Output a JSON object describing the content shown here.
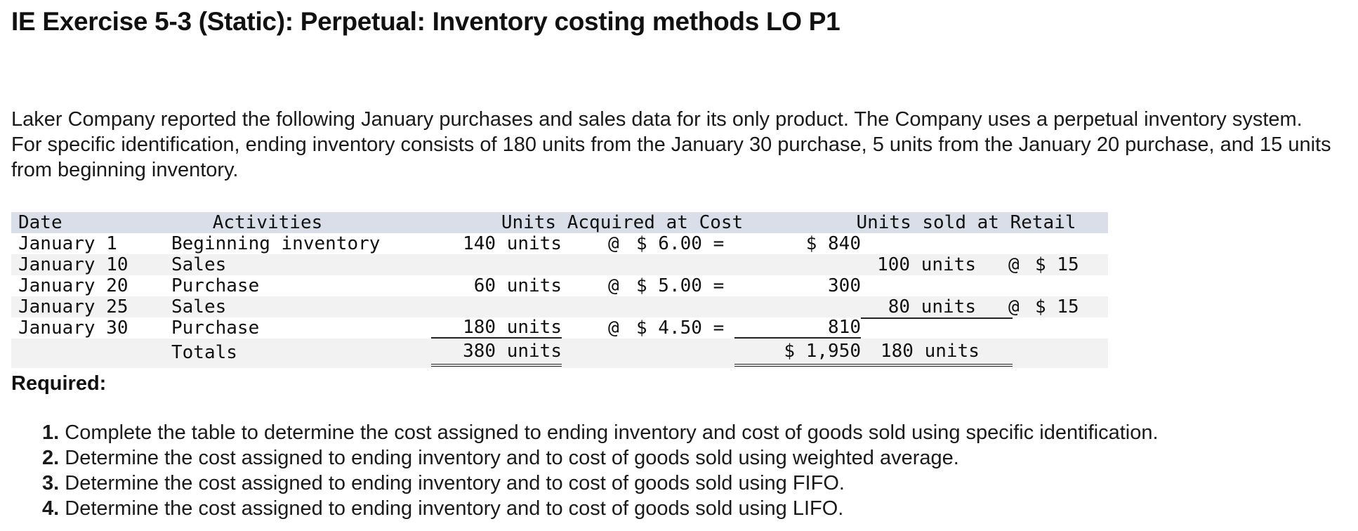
{
  "title": "IE Exercise 5-3 (Static): Perpetual: Inventory costing methods LO P1",
  "intro": "Laker Company reported the following January purchases and sales data for its only product. The Company uses a perpetual inventory system. For specific identification, ending inventory consists of 180 units from the January 30 purchase, 5 units from the January 20 purchase, and 15 units from beginning inventory.",
  "table": {
    "headers": {
      "date": "Date",
      "activities": "Activities",
      "acquired": "Units Acquired at Cost",
      "sold": "Units sold at Retail"
    },
    "rows": [
      {
        "date": "January 1",
        "activity": "Beginning inventory",
        "units_acq": "140 units",
        "at": "@",
        "cost": "$ 6.00 =",
        "total": "$ 840",
        "units_sold": "",
        "at2": "",
        "retail": ""
      },
      {
        "date": "January 10",
        "activity": "Sales",
        "units_acq": "",
        "at": "",
        "cost": "",
        "total": "",
        "units_sold": "100 units",
        "at2": "@",
        "retail": "$ 15"
      },
      {
        "date": "January 20",
        "activity": "Purchase",
        "units_acq": "60 units",
        "at": "@",
        "cost": "$ 5.00 =",
        "total": "300",
        "units_sold": "",
        "at2": "",
        "retail": ""
      },
      {
        "date": "January 25",
        "activity": "Sales",
        "units_acq": "",
        "at": "",
        "cost": "",
        "total": "",
        "units_sold": "80 units",
        "at2": "@",
        "retail": "$ 15"
      },
      {
        "date": "January 30",
        "activity": "Purchase",
        "units_acq": "180 units",
        "at": "@",
        "cost": "$ 4.50 =",
        "total": "810",
        "units_sold": "",
        "at2": "",
        "retail": ""
      }
    ],
    "totals": {
      "label": "Totals",
      "units_acq": "380 units",
      "total": "$ 1,950",
      "units_sold": "180 units"
    }
  },
  "required": {
    "heading": "Required:",
    "items": [
      {
        "num": "1.",
        "text": "Complete the table to determine the cost assigned to ending inventory and cost of goods sold using specific identification."
      },
      {
        "num": "2.",
        "text": "Determine the cost assigned to ending inventory and to cost of goods sold using weighted average."
      },
      {
        "num": "3.",
        "text": "Determine the cost assigned to ending inventory and to cost of goods sold using FIFO."
      },
      {
        "num": "4.",
        "text": "Determine the cost assigned to ending inventory and to cost of goods sold using LIFO."
      }
    ]
  }
}
